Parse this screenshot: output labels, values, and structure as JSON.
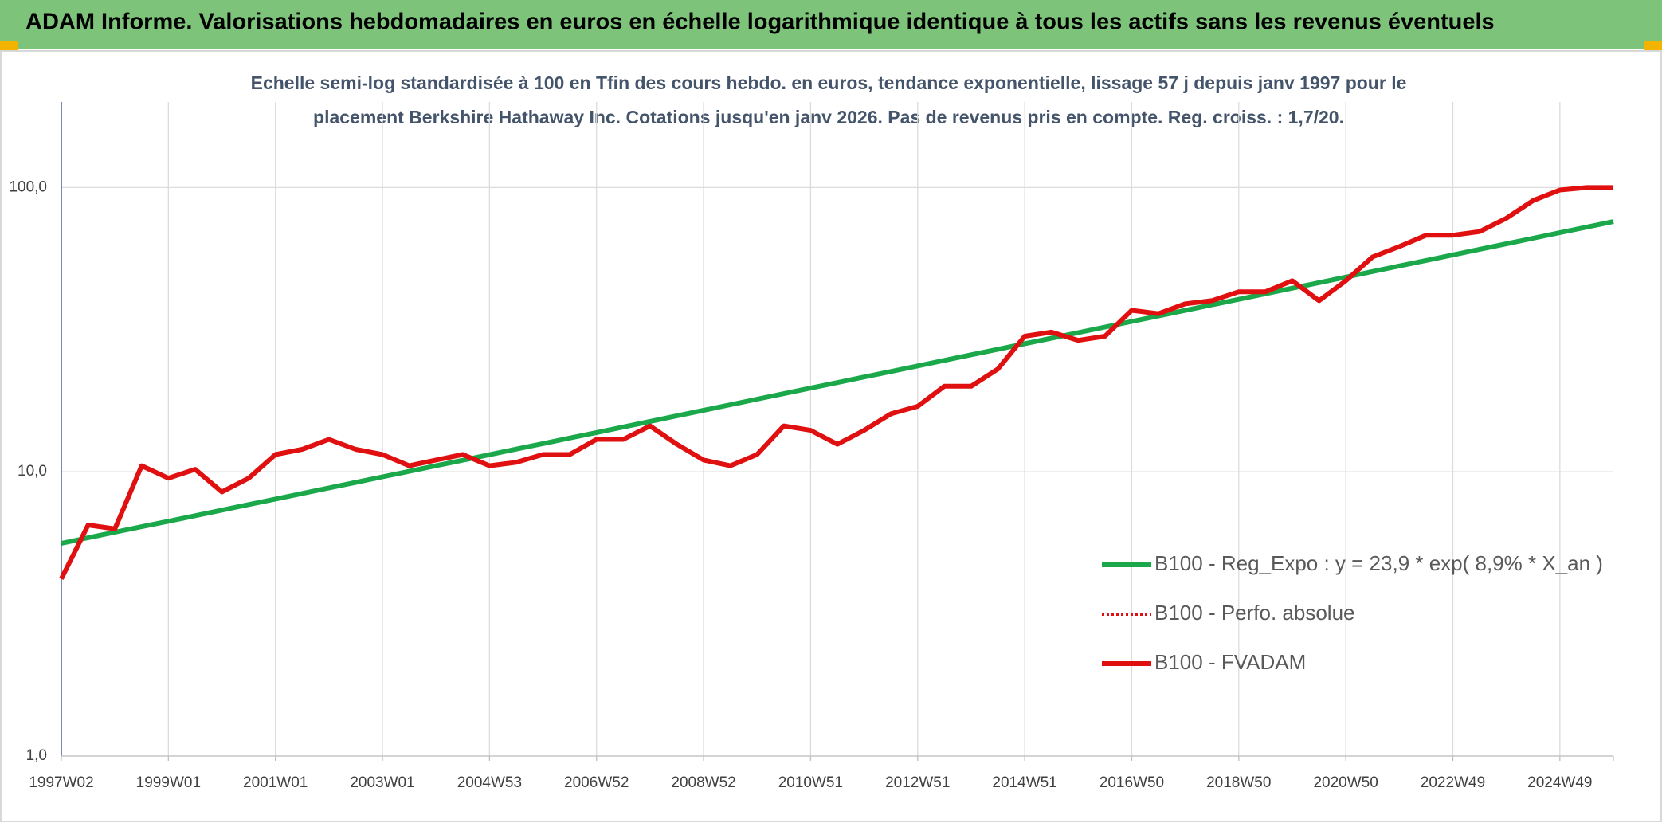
{
  "chart_data": {
    "type": "line",
    "title": "ADAM Informe. Valorisations hebdomadaires en euros en échelle logarithmique identique à tous les actifs sans les revenus éventuels",
    "subtitle": [
      "Echelle semi-log standardisée à 100 en Tfin des cours hebdo. en euros, tendance exponentielle, lissage 57 j depuis janv 1997 pour le",
      "placement Berkshire Hathaway Inc. Cotations jusqu'en janv 2026. Pas de revenus pris en compte. Reg. croiss. : 1,7/20."
    ],
    "categories": [
      "1997W02",
      null,
      null,
      null,
      "1999W01",
      null,
      null,
      null,
      "2001W01",
      null,
      null,
      null,
      "2003W01",
      null,
      null,
      null,
      "2004W53",
      null,
      null,
      null,
      "2006W52",
      null,
      null,
      null,
      "2008W52",
      null,
      null,
      null,
      "2010W51",
      null,
      null,
      null,
      "2012W51",
      null,
      null,
      null,
      "2014W51",
      null,
      null,
      null,
      "2016W50",
      null,
      null,
      null,
      "2018W50",
      null,
      null,
      null,
      "2020W50",
      null,
      null,
      null,
      "2022W49",
      null,
      null,
      null,
      "2024W49",
      null,
      null
    ],
    "log_scale": true,
    "ylim": [
      1,
      200
    ],
    "yticks": [
      {
        "value": 1,
        "label": "1,0"
      },
      {
        "value": 10,
        "label": "10,0"
      },
      {
        "value": 100,
        "label": "100,0"
      }
    ],
    "grid": true,
    "legend_position": "right",
    "series": [
      {
        "name": "B100 - Reg_Expo : y = 23,9 * exp( 8,9% *  X_an )",
        "color": "#1aa84a",
        "style": "solid",
        "values": [
          5.6,
          5.86,
          6.13,
          6.41,
          6.7,
          7.01,
          7.33,
          7.67,
          8.02,
          8.39,
          8.78,
          9.18,
          9.6,
          10.04,
          10.5,
          10.98,
          11.49,
          12.02,
          12.57,
          13.15,
          13.75,
          14.38,
          15.04,
          15.74,
          16.46,
          17.22,
          18.01,
          18.84,
          19.7,
          20.6,
          21.55,
          22.54,
          23.58,
          24.66,
          25.8,
          26.98,
          28.22,
          29.52,
          30.88,
          32.3,
          33.79,
          35.34,
          36.97,
          38.67,
          40.45,
          42.31,
          44.26,
          46.29,
          48.42,
          50.65,
          52.98,
          55.42,
          57.97,
          60.63,
          63.42,
          66.34,
          69.39,
          72.58,
          75.92
        ]
      },
      {
        "name": "B100 - Perfo. absolue",
        "color": "#e01010",
        "style": "dotted",
        "values": [
          4.2,
          6.5,
          6.3,
          10.5,
          9.5,
          10.2,
          8.5,
          9.5,
          11.5,
          12,
          13,
          12,
          11.5,
          10.5,
          11,
          11.5,
          10.5,
          10.8,
          11.5,
          11.5,
          13,
          13,
          14.5,
          12.5,
          11,
          10.5,
          11.5,
          14.5,
          14,
          12.5,
          14,
          16,
          17,
          20,
          20,
          23,
          30,
          31,
          29,
          30,
          37,
          36,
          39,
          40,
          43,
          43,
          47,
          40,
          47,
          57,
          62,
          68,
          68,
          70,
          78,
          90,
          98,
          100,
          100
        ]
      },
      {
        "name": "B100 - FVADAM",
        "color": "#e01010",
        "style": "solid",
        "values": [
          4.2,
          6.5,
          6.3,
          10.5,
          9.5,
          10.2,
          8.5,
          9.5,
          11.5,
          12,
          13,
          12,
          11.5,
          10.5,
          11,
          11.5,
          10.5,
          10.8,
          11.5,
          11.5,
          13,
          13,
          14.5,
          12.5,
          11,
          10.5,
          11.5,
          14.5,
          14,
          12.5,
          14,
          16,
          17,
          20,
          20,
          23,
          30,
          31,
          29,
          30,
          37,
          36,
          39,
          40,
          43,
          43,
          47,
          40,
          47,
          57,
          62,
          68,
          68,
          70,
          78,
          90,
          98,
          100,
          100
        ]
      }
    ]
  }
}
